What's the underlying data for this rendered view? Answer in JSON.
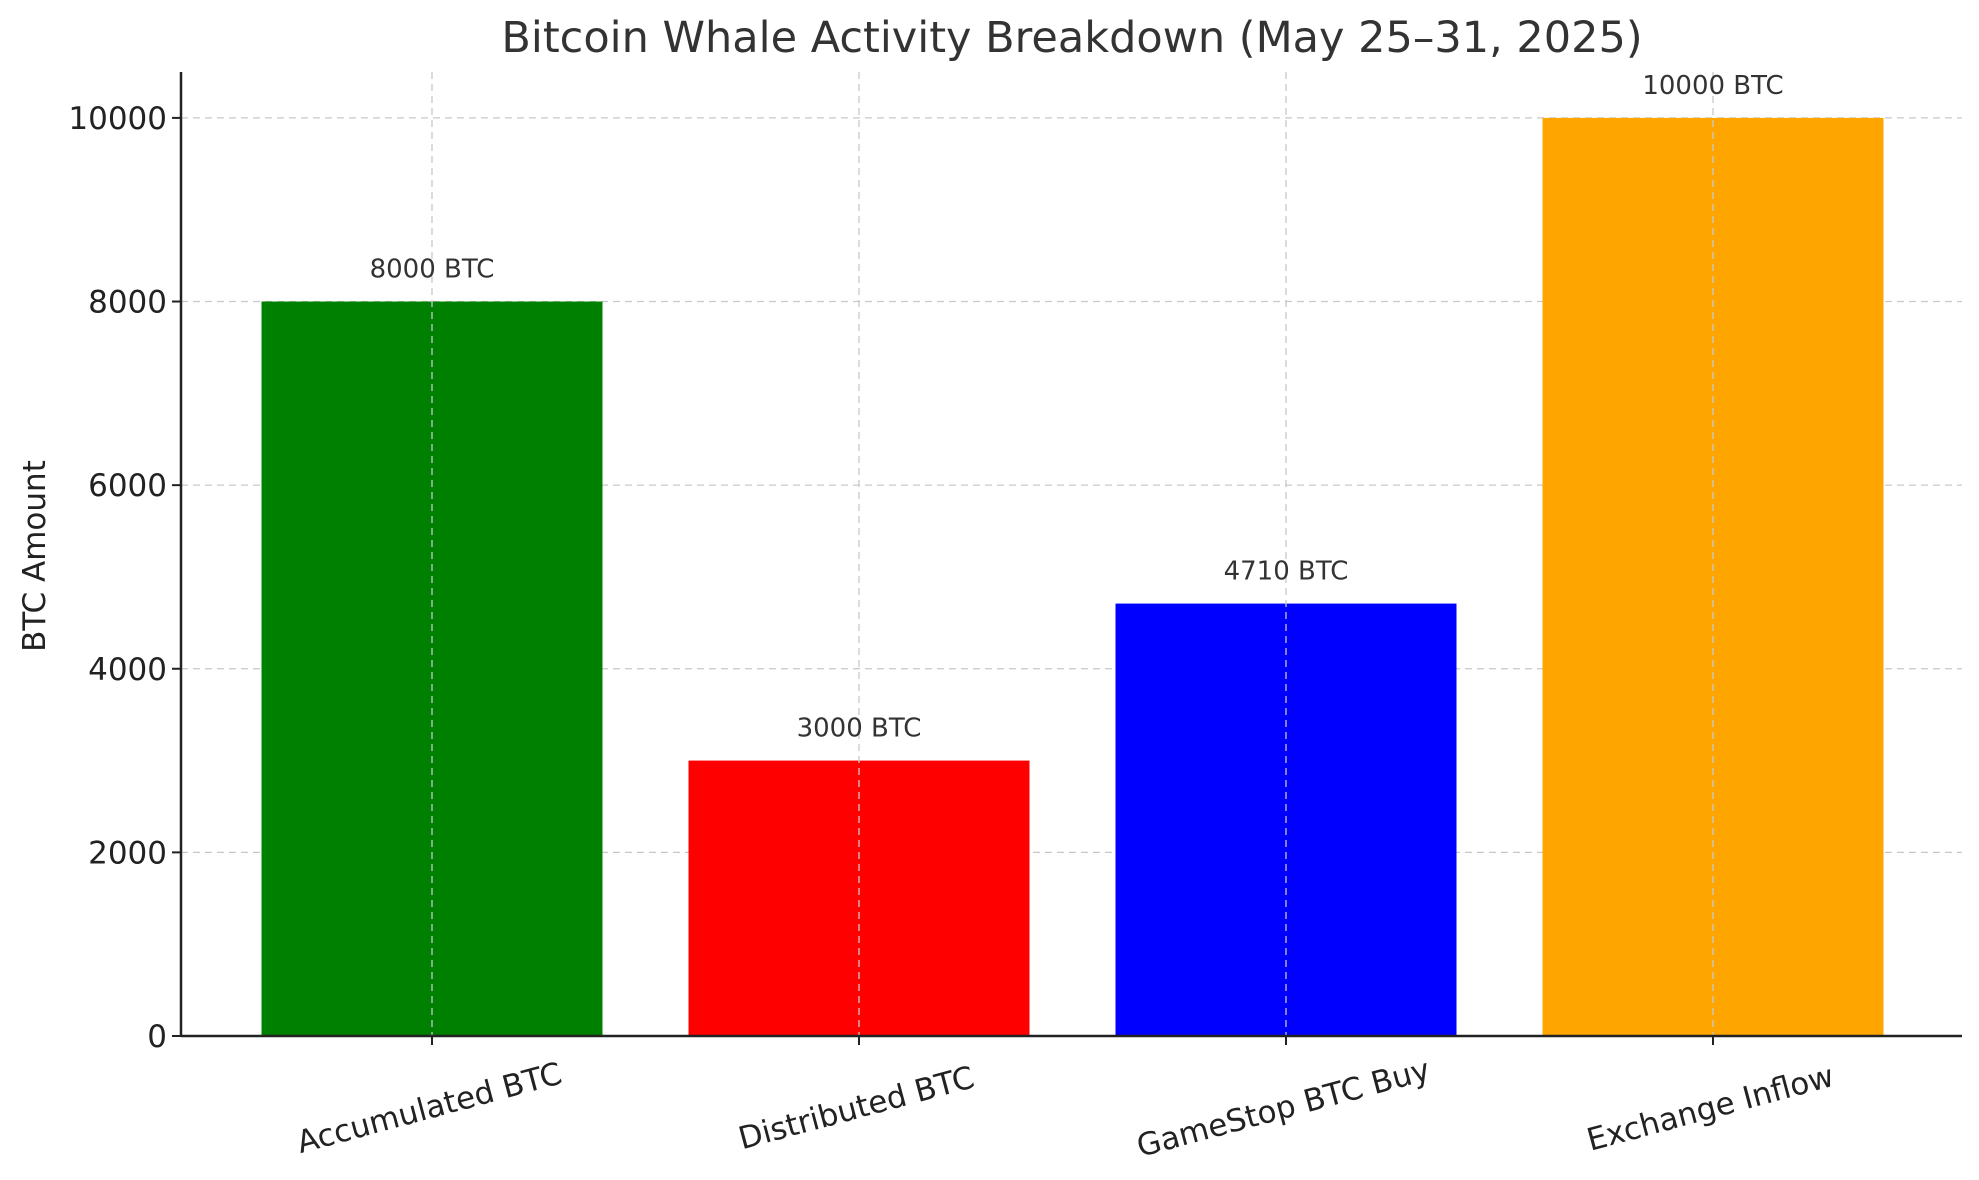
{
  "chart_data": {
    "type": "bar",
    "title": "Bitcoin Whale Activity Breakdown (May 25–31, 2025)",
    "xlabel": "",
    "ylabel": "BTC Amount",
    "categories": [
      "Accumulated BTC",
      "Distributed BTC",
      "GameStop BTC Buy",
      "Exchange Inflow"
    ],
    "values": [
      8000,
      3000,
      4710,
      10000
    ],
    "data_labels": [
      "8000 BTC",
      "3000 BTC",
      "4710 BTC",
      "10000 BTC"
    ],
    "colors": [
      "#008000",
      "#ff0000",
      "#0000ff",
      "#ffa500"
    ],
    "ylim": [
      0,
      10500
    ],
    "yticks": [
      0,
      2000,
      4000,
      6000,
      8000,
      10000
    ],
    "grid": true,
    "legend": "none"
  }
}
